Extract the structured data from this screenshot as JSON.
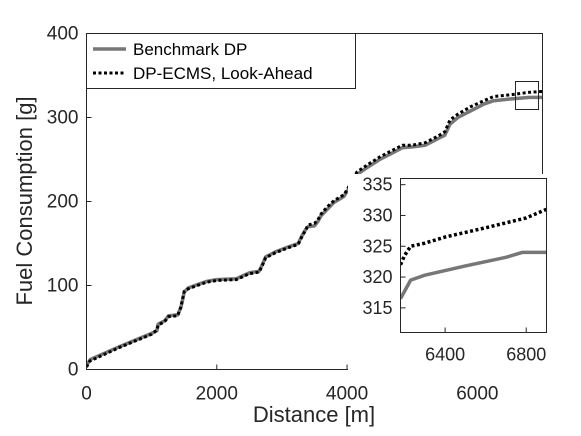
{
  "chart_data": [
    {
      "type": "line",
      "xlabel": "Distance [m]",
      "ylabel": "Fuel Consumption [g]",
      "xlim": [
        0,
        7000
      ],
      "ylim": [
        0,
        400
      ],
      "xticks": [
        "0",
        "2000",
        "4000",
        "6000"
      ],
      "yticks": [
        "0",
        "100",
        "200",
        "300",
        "400"
      ],
      "grid": false,
      "legend_position": "top-left",
      "series": [
        {
          "name": "Benchmark DP",
          "color": "#777777",
          "style": "solid",
          "points": [
            [
              0,
              5
            ],
            [
              60,
              12
            ],
            [
              500,
              27
            ],
            [
              1000,
              43
            ],
            [
              1080,
              46
            ],
            [
              1100,
              54
            ],
            [
              1200,
              58
            ],
            [
              1260,
              64
            ],
            [
              1400,
              65
            ],
            [
              1450,
              74
            ],
            [
              1500,
              92
            ],
            [
              1560,
              97
            ],
            [
              1700,
              101
            ],
            [
              1850,
              105
            ],
            [
              2000,
              107
            ],
            [
              2300,
              108
            ],
            [
              2500,
              115
            ],
            [
              2650,
              117
            ],
            [
              2700,
              125
            ],
            [
              2750,
              134
            ],
            [
              2900,
              140
            ],
            [
              3100,
              146
            ],
            [
              3250,
              150
            ],
            [
              3300,
              158
            ],
            [
              3350,
              165
            ],
            [
              3400,
              170
            ],
            [
              3500,
              171
            ],
            [
              3550,
              176
            ],
            [
              3600,
              183
            ],
            [
              3700,
              191
            ],
            [
              3800,
              199
            ],
            [
              3950,
              206
            ],
            [
              4000,
              212
            ],
            [
              4050,
              219
            ],
            [
              4150,
              232
            ],
            [
              4300,
              240
            ],
            [
              4500,
              250
            ],
            [
              4700,
              258
            ],
            [
              4850,
              264
            ],
            [
              5000,
              265
            ],
            [
              5200,
              267
            ],
            [
              5400,
              275
            ],
            [
              5500,
              279
            ],
            [
              5580,
              292
            ],
            [
              5700,
              300
            ],
            [
              5900,
              308
            ],
            [
              6100,
              316
            ],
            [
              6250,
              320
            ],
            [
              6500,
              322
            ],
            [
              6800,
              324
            ],
            [
              7000,
              324
            ]
          ]
        },
        {
          "name": "DP-ECMS, Look-Ahead",
          "color": "#000000",
          "style": "dotted",
          "points": [
            [
              0,
              3
            ],
            [
              50,
              10
            ],
            [
              500,
              26
            ],
            [
              1000,
              42
            ],
            [
              1080,
              47
            ],
            [
              1100,
              53
            ],
            [
              1200,
              57
            ],
            [
              1260,
              63
            ],
            [
              1400,
              64
            ],
            [
              1450,
              75
            ],
            [
              1500,
              93
            ],
            [
              1560,
              96
            ],
            [
              1700,
              100
            ],
            [
              1850,
              104
            ],
            [
              2000,
              106
            ],
            [
              2300,
              107
            ],
            [
              2500,
              114
            ],
            [
              2650,
              116
            ],
            [
              2700,
              124
            ],
            [
              2750,
              133
            ],
            [
              2900,
              139
            ],
            [
              3100,
              145
            ],
            [
              3250,
              149
            ],
            [
              3300,
              157
            ],
            [
              3350,
              164
            ],
            [
              3400,
              172
            ],
            [
              3500,
              174
            ],
            [
              3550,
              178
            ],
            [
              3600,
              185
            ],
            [
              3700,
              194
            ],
            [
              3800,
              201
            ],
            [
              3950,
              208
            ],
            [
              4000,
              214
            ],
            [
              4050,
              221
            ],
            [
              4150,
              235
            ],
            [
              4300,
              243
            ],
            [
              4500,
              253
            ],
            [
              4700,
              261
            ],
            [
              4850,
              267
            ],
            [
              5000,
              267
            ],
            [
              5200,
              270
            ],
            [
              5400,
              278
            ],
            [
              5500,
              283
            ],
            [
              5580,
              297
            ],
            [
              5700,
              304
            ],
            [
              5900,
              313
            ],
            [
              6100,
              320
            ],
            [
              6250,
              325
            ],
            [
              6500,
              327
            ],
            [
              6800,
              330
            ],
            [
              7000,
              331
            ]
          ]
        }
      ]
    },
    {
      "type": "line",
      "xlim": [
        6180,
        6900
      ],
      "ylim": [
        311,
        336
      ],
      "xticks": [
        "6400",
        "6800"
      ],
      "yticks": [
        "315",
        "320",
        "325",
        "330",
        "335"
      ],
      "grid": false,
      "series": [
        {
          "name": "Benchmark DP",
          "color": "#777777",
          "style": "solid",
          "points": [
            [
              6180,
              316.5
            ],
            [
              6230,
              319.5
            ],
            [
              6300,
              320.3
            ],
            [
              6500,
              321.8
            ],
            [
              6700,
              323.2
            ],
            [
              6780,
              324
            ],
            [
              6900,
              324
            ]
          ]
        },
        {
          "name": "DP-ECMS, Look-Ahead",
          "color": "#000000",
          "style": "dotted",
          "points": [
            [
              6180,
              322
            ],
            [
              6200,
              323.5
            ],
            [
              6230,
              325
            ],
            [
              6300,
              325.5
            ],
            [
              6400,
              326.5
            ],
            [
              6600,
              328
            ],
            [
              6800,
              329.6
            ],
            [
              6900,
              331
            ]
          ]
        }
      ]
    }
  ]
}
